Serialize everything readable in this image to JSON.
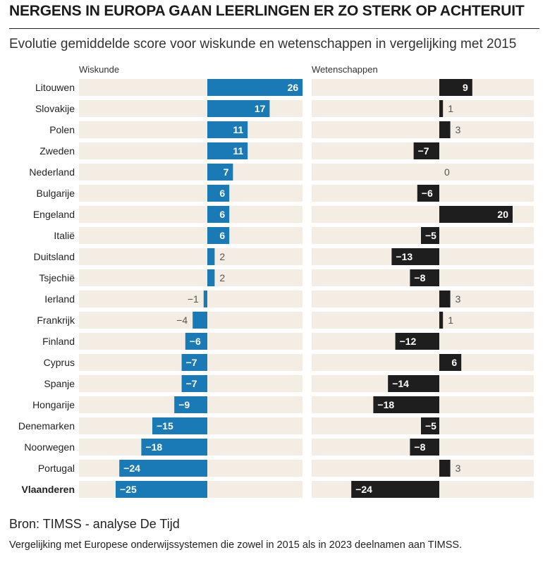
{
  "header": {
    "title": "NERGENS IN EUROPA GAAN LEERLINGEN ER ZO STERK OP ACHTERUIT",
    "subtitle": "Evolutie gemiddelde score voor wiskunde en wetenschappen in vergelijking met 2015"
  },
  "footer": {
    "source": "Bron: TIMSS - analyse De Tijd",
    "note": "Vergelijking met Europese onderwijssystemen die zowel in 2015 als in 2023 deelnamen aan TIMSS."
  },
  "colors": {
    "wiskunde": "#1a7ab5",
    "wetenschappen": "#1e1e1e",
    "row_bg": "#f3ede4",
    "label_in": "#ffffff",
    "label_out": "#555555"
  },
  "chart_data": {
    "type": "bar",
    "orientation": "horizontal",
    "categories": [
      "Litouwen",
      "Slovakije",
      "Polen",
      "Zweden",
      "Nederland",
      "Bulgarije",
      "Engeland",
      "Italië",
      "Duitsland",
      "Tsjechië",
      "Ierland",
      "Frankrijk",
      "Finland",
      "Cyprus",
      "Spanje",
      "Hongarije",
      "Denemarken",
      "Noorwegen",
      "Portugal",
      "Vlaanderen"
    ],
    "highlight": "Vlaanderen",
    "series": [
      {
        "name": "Wiskunde",
        "values": [
          26,
          17,
          11,
          11,
          7,
          6,
          6,
          6,
          2,
          2,
          -1,
          -4,
          -6,
          -7,
          -7,
          -9,
          -15,
          -18,
          -24,
          -25
        ]
      },
      {
        "name": "Wetenschappen",
        "values": [
          9,
          1,
          3,
          -7,
          0,
          -6,
          20,
          -5,
          -13,
          -8,
          3,
          1,
          -12,
          6,
          -14,
          -18,
          -5,
          -8,
          3,
          -24
        ]
      }
    ]
  }
}
